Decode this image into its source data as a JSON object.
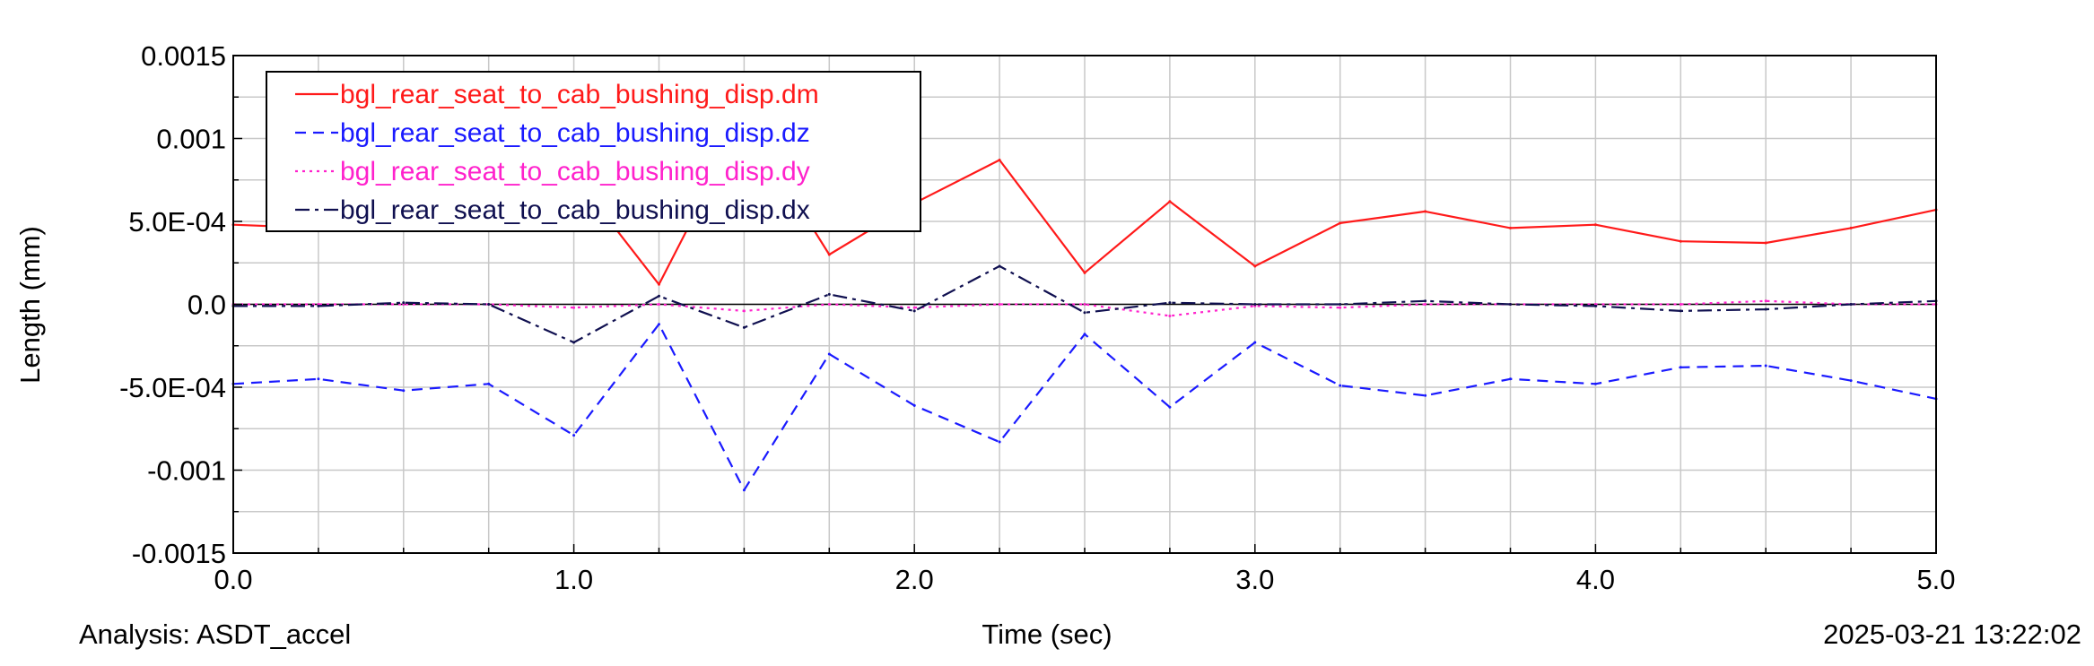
{
  "footer": {
    "analysis_label": "Analysis:",
    "analysis_name": "ASDT_accel",
    "timestamp": "2025-03-21 13:22:02"
  },
  "chart_data": {
    "type": "line",
    "title": "",
    "xlabel": "Time (sec)",
    "ylabel": "Length (mm)",
    "xlim": [
      0.0,
      5.0
    ],
    "ylim": [
      -0.0015,
      0.0015
    ],
    "x_ticks": [
      0.0,
      1.0,
      2.0,
      3.0,
      4.0,
      5.0
    ],
    "x_tick_labels": [
      "0.0",
      "1.0",
      "2.0",
      "3.0",
      "4.0",
      "5.0"
    ],
    "y_ticks": [
      0.0015,
      0.001,
      0.0005,
      0.0,
      -0.0005,
      -0.001,
      -0.0015
    ],
    "y_tick_labels": [
      "0.0015",
      "0.001",
      "5.0E-04",
      "0.0",
      "-5.0E-04",
      "-0.001",
      "-0.0015"
    ],
    "grid": true,
    "legend_position": "top-left",
    "x": [
      0.0,
      0.25,
      0.5,
      0.75,
      1.0,
      1.25,
      1.5,
      1.75,
      2.0,
      2.25,
      2.5,
      2.75,
      3.0,
      3.25,
      3.5,
      3.75,
      4.0,
      4.25,
      4.5,
      4.75,
      5.0
    ],
    "series": [
      {
        "name": "bgl_rear_seat_to_cab_bushing_disp.dm",
        "color": "#ff1a1a",
        "style": "solid",
        "values": [
          0.00048,
          0.00046,
          0.00052,
          0.00048,
          0.00078,
          0.00012,
          0.00112,
          0.0003,
          0.00061,
          0.00087,
          0.00019,
          0.00062,
          0.00023,
          0.00049,
          0.00056,
          0.00046,
          0.00048,
          0.00038,
          0.00037,
          0.00046,
          0.00057
        ]
      },
      {
        "name": "bgl_rear_seat_to_cab_bushing_disp.dz",
        "color": "#1a1aff",
        "style": "dashed",
        "values": [
          -0.00048,
          -0.00045,
          -0.00052,
          -0.00048,
          -0.00079,
          -0.00012,
          -0.00112,
          -0.0003,
          -0.00061,
          -0.00083,
          -0.00018,
          -0.00062,
          -0.00023,
          -0.00049,
          -0.00055,
          -0.00045,
          -0.00048,
          -0.00038,
          -0.00037,
          -0.00046,
          -0.00057
        ]
      },
      {
        "name": "bgl_rear_seat_to_cab_bushing_disp.dy",
        "color": "#ff22cc",
        "style": "dotted",
        "values": [
          0.0,
          0.0,
          0.0,
          0.0,
          -2e-05,
          0.0,
          -4e-05,
          0.0,
          -2e-05,
          0.0,
          0.0,
          -7e-05,
          -1e-05,
          -2e-05,
          0.0,
          0.0,
          0.0,
          0.0,
          2e-05,
          0.0,
          0.0
        ]
      },
      {
        "name": "bgl_rear_seat_to_cab_bushing_disp.dx",
        "color": "#101050",
        "style": "dashdot",
        "values": [
          -1e-05,
          -1e-05,
          1e-05,
          0.0,
          -0.00023,
          5e-05,
          -0.00014,
          6e-05,
          -4e-05,
          0.00023,
          -5e-05,
          1e-05,
          0.0,
          0.0,
          2e-05,
          0.0,
          -1e-05,
          -4e-05,
          -3e-05,
          0.0,
          2e-05
        ]
      }
    ]
  }
}
